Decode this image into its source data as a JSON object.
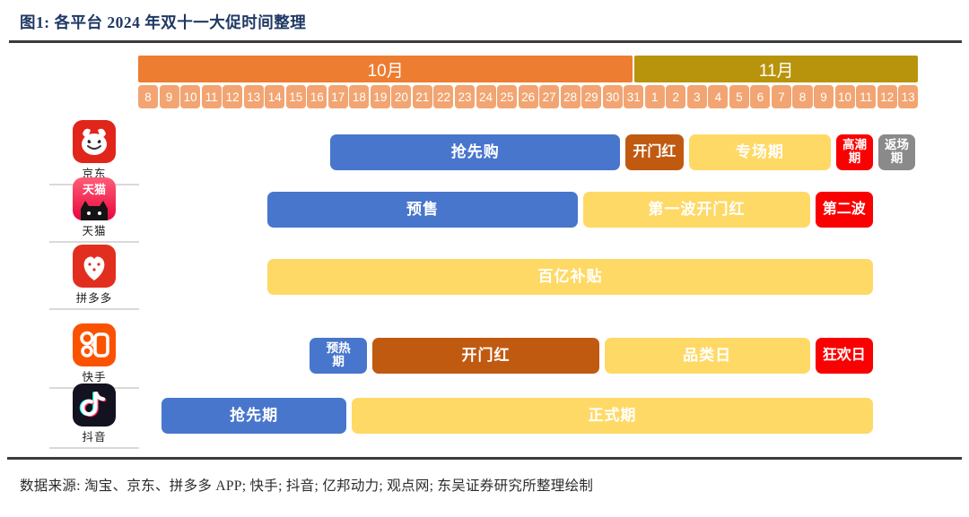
{
  "title": "图1:  各平台 2024 年双十一大促时间整理",
  "source": "数据来源: 淘宝、京东、拼多多 APP; 快手; 抖音; 亿邦动力; 观点网; 东吴证券研究所整理绘制",
  "palette": {
    "title_blue": "#1F3864",
    "rule_gray": "#3b3b3b",
    "month_oct_orange": "#ED7D31",
    "month_nov_gold": "#B8940C",
    "date_cell_orange": "#F2A572",
    "bar_blue": "#4876CC",
    "bar_brown": "#C05A11",
    "bar_yellow": "#FFD966",
    "bar_red": "#FA0000",
    "bar_gray": "#8A8A8A",
    "icon_jd_red": "#E1251B",
    "icon_tmall_red": "#E8053C",
    "icon_pdd_red": "#E22E1F",
    "icon_kuaishou_orange": "#FB5200",
    "icon_douyin_black": "#121220"
  },
  "chart_data": {
    "type": "bar",
    "subtype": "gantt-timeline",
    "title": "各平台 2024 年双十一大促时间整理",
    "timeline_span_days": 37,
    "axis_start_date": "10.08",
    "axis_end_date": "11.13",
    "months": [
      {
        "label": "10月",
        "days": 24,
        "color_key": "month_oct_orange"
      },
      {
        "label": "11月",
        "days": 13,
        "color_key": "month_nov_gold"
      }
    ],
    "day_labels": [
      "8",
      "9",
      "10",
      "11",
      "12",
      "13",
      "14",
      "15",
      "16",
      "17",
      "18",
      "19",
      "20",
      "21",
      "22",
      "23",
      "24",
      "25",
      "26",
      "27",
      "28",
      "29",
      "30",
      "31",
      "1",
      "2",
      "3",
      "4",
      "5",
      "6",
      "7",
      "8",
      "9",
      "10",
      "11",
      "12",
      "13"
    ],
    "rows": [
      {
        "platform": "京东",
        "key": "jd",
        "icon": "jd-app-icon",
        "bars": [
          {
            "label": "抢先购",
            "color": "blue",
            "start": 9,
            "end": 23,
            "start_date": "10.17",
            "end_date": "10.30"
          },
          {
            "label": "开门红",
            "color": "brown",
            "start": 23,
            "end": 26,
            "start_date": "10.31",
            "end_date": "11.02",
            "size": "mid"
          },
          {
            "label": "专场期",
            "color": "yellow",
            "start": 26,
            "end": 33,
            "start_date": "11.03",
            "end_date": "11.09"
          },
          {
            "label": "高潮期",
            "color": "red",
            "start": 33,
            "end": 35,
            "start_date": "11.10",
            "end_date": "11.11",
            "lines": [
              "高潮",
              "期"
            ]
          },
          {
            "label": "返场期",
            "color": "gray",
            "start": 35,
            "end": 37,
            "start_date": "11.12",
            "end_date": "11.13",
            "lines": [
              "返场",
              "期"
            ]
          }
        ]
      },
      {
        "platform": "天猫",
        "key": "tmall",
        "icon": "tmall-app-icon",
        "icon_text": "天猫",
        "bars": [
          {
            "label": "预售",
            "color": "blue",
            "start": 6,
            "end": 21,
            "start_date": "10.14",
            "end_date": "10.28"
          },
          {
            "label": "第一波开门红",
            "color": "yellow",
            "start": 21,
            "end": 32,
            "start_date": "10.29",
            "end_date": "11.08"
          },
          {
            "label": "第二波",
            "color": "red",
            "start": 32,
            "end": 35,
            "start_date": "11.09",
            "end_date": "11.11",
            "size": "mid"
          }
        ]
      },
      {
        "platform": "拼多多",
        "key": "pdd",
        "icon": "pdd-app-icon",
        "bars": [
          {
            "label": "百亿补贴",
            "color": "yellow",
            "start": 6,
            "end": 35,
            "start_date": "10.14",
            "end_date": "11.11"
          }
        ]
      },
      {
        "platform": "快手",
        "key": "kuaishou",
        "icon": "kuaishou-app-icon",
        "bars": [
          {
            "label": "预热期",
            "color": "blue",
            "start": 8,
            "end": 11,
            "start_date": "10.16",
            "end_date": "10.18",
            "lines": [
              "预热",
              "期"
            ],
            "size": "mid"
          },
          {
            "label": "开门红",
            "color": "brown",
            "start": 11,
            "end": 22,
            "start_date": "10.19",
            "end_date": "10.29"
          },
          {
            "label": "品类日",
            "color": "yellow",
            "start": 22,
            "end": 32,
            "start_date": "10.30",
            "end_date": "11.08"
          },
          {
            "label": "狂欢日",
            "color": "red",
            "start": 32,
            "end": 35,
            "start_date": "11.09",
            "end_date": "11.11",
            "size": "mid"
          }
        ]
      },
      {
        "platform": "抖音",
        "key": "douyin",
        "icon": "douyin-app-icon",
        "bars": [
          {
            "label": "抢先期",
            "color": "blue",
            "start": 1,
            "end": 10,
            "start_date": "10.09",
            "end_date": "10.17"
          },
          {
            "label": "正式期",
            "color": "yellow",
            "start": 10,
            "end": 35,
            "start_date": "10.18",
            "end_date": "11.11"
          }
        ]
      }
    ]
  }
}
